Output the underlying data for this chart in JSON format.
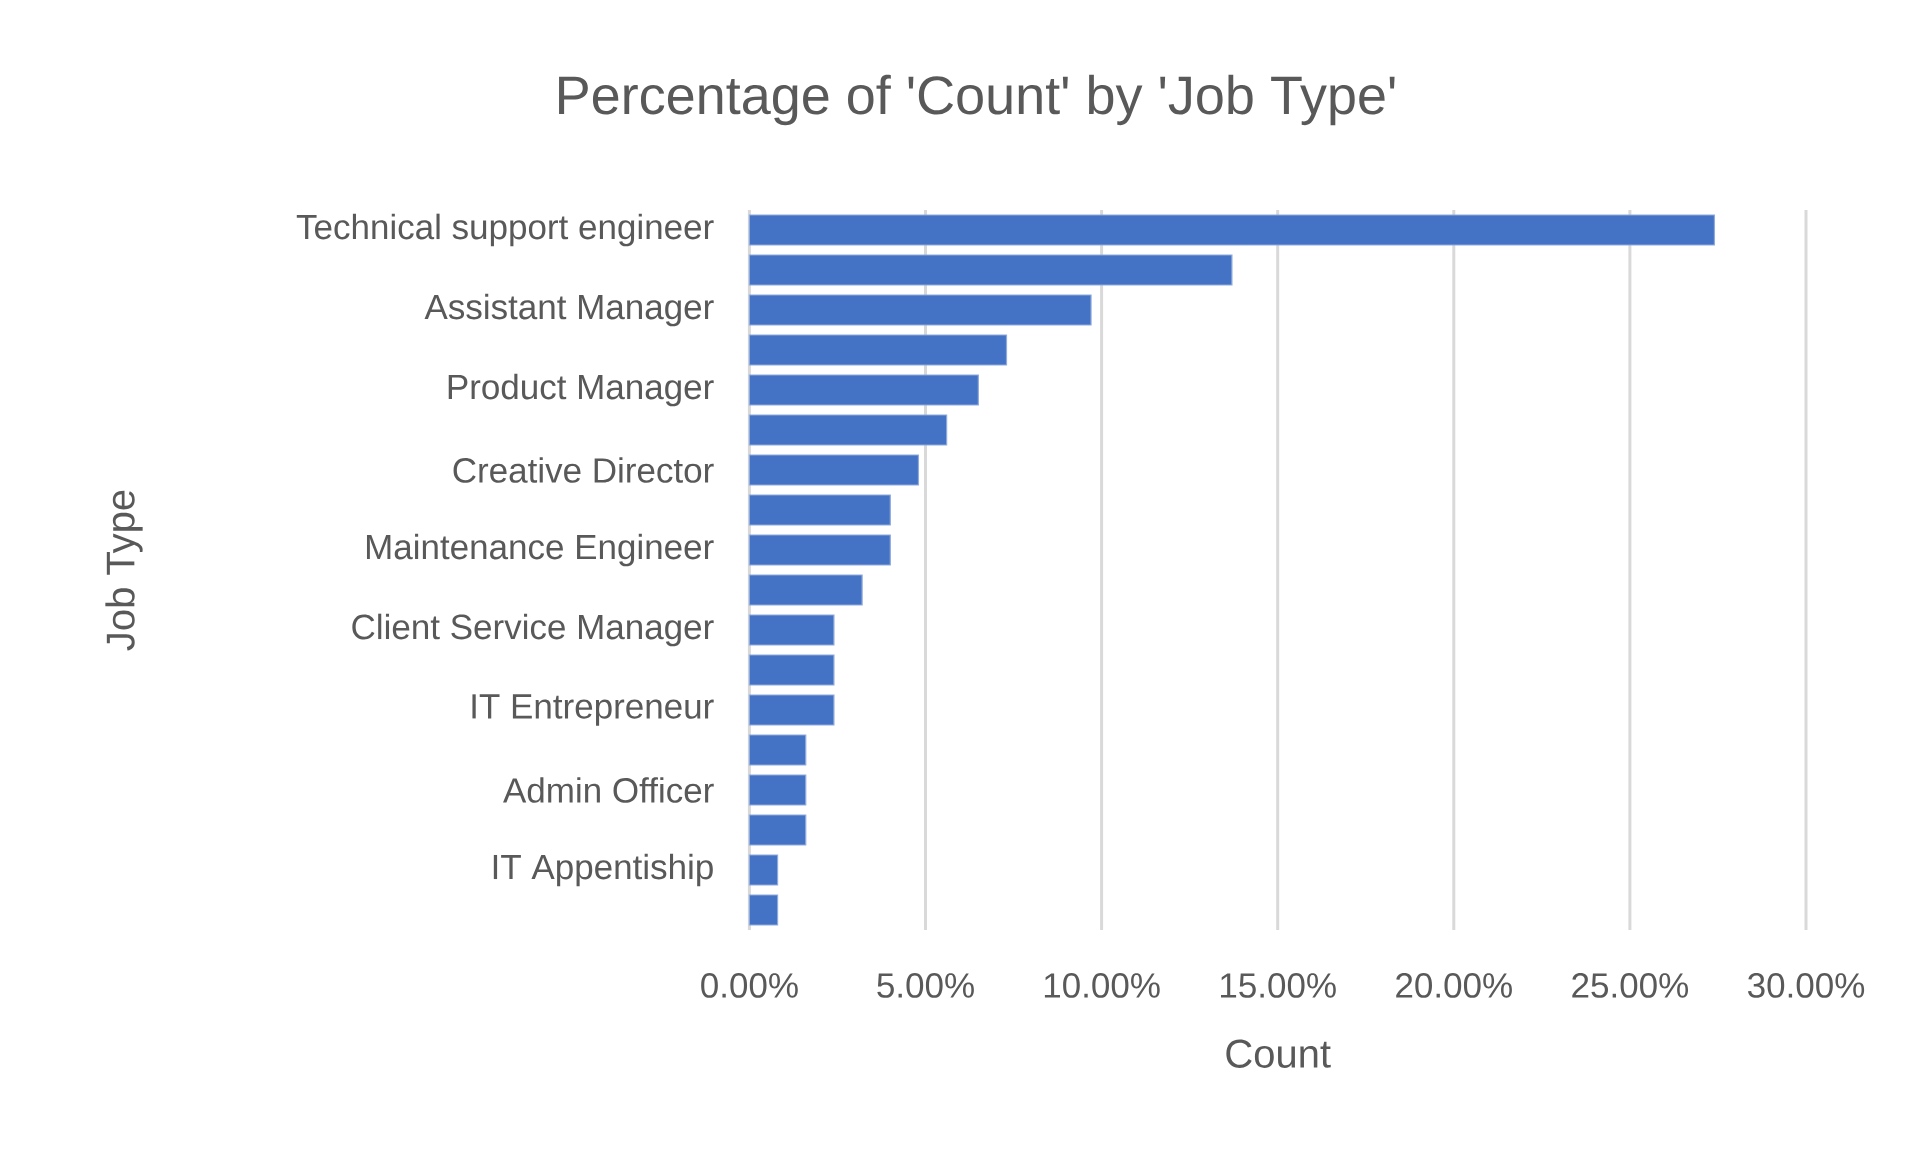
{
  "chart_data": {
    "type": "bar",
    "orientation": "horizontal",
    "title": "Percentage of 'Count' by 'Job Type'",
    "xlabel": "Count",
    "ylabel": "Job Type",
    "categories": [
      "Technical support engineer",
      null,
      "Assistant Manager",
      null,
      "Product Manager",
      null,
      "Creative Director",
      null,
      "Maintenance Engineer",
      null,
      "Client Service Manager",
      null,
      "IT Entrepreneur",
      null,
      "Admin Officer",
      null,
      "IT Appentiship",
      null
    ],
    "values": [
      27.4,
      13.7,
      9.7,
      7.3,
      6.5,
      5.6,
      4.8,
      4.0,
      4.0,
      3.2,
      2.4,
      2.4,
      2.4,
      1.6,
      1.6,
      1.6,
      0.8,
      0.8
    ],
    "color": "#4472c4",
    "xlim": [
      0,
      30
    ],
    "xticks": [
      {
        "value": 0,
        "label": "0.00%"
      },
      {
        "value": 5,
        "label": "5.00%"
      },
      {
        "value": 10,
        "label": "10.00%"
      },
      {
        "value": 15,
        "label": "15.00%"
      },
      {
        "value": 20,
        "label": "20.00%"
      },
      {
        "value": 25,
        "label": "25.00%"
      },
      {
        "value": 30,
        "label": "30.00%"
      }
    ],
    "grid": "x"
  }
}
